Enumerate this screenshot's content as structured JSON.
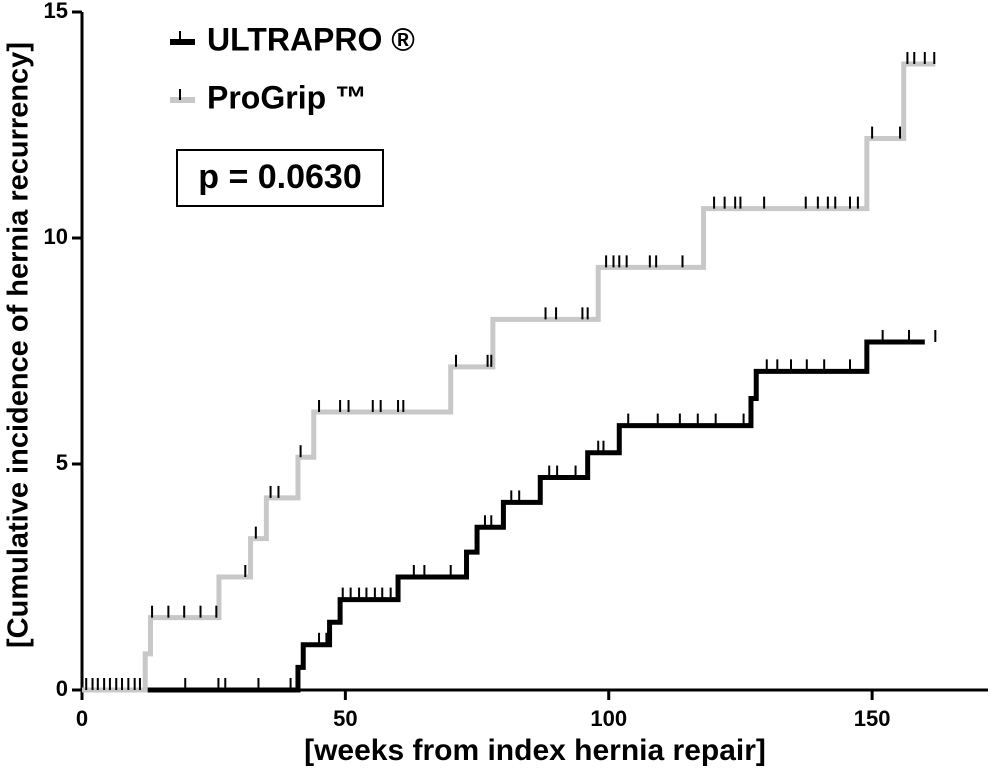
{
  "chart_data": {
    "type": "step",
    "xlabel": "[weeks from index hernia repair]",
    "ylabel": "[Cumulative incidence of hernia recurrency]",
    "annotation": "p = 0.0630",
    "xlim": [
      0,
      172
    ],
    "ylim": [
      0,
      15
    ],
    "xticks": [
      0,
      50,
      100,
      150
    ],
    "yticks": [
      0,
      5,
      10,
      15
    ],
    "series": [
      {
        "name": "ULTRAPRO ®",
        "color": "#000000",
        "x": [
          0,
          41,
          42,
          47,
          49,
          60,
          73,
          75,
          80,
          87,
          96,
          102,
          127,
          128,
          149,
          160
        ],
        "values": [
          0,
          0.5,
          1.0,
          1.5,
          2.0,
          2.5,
          3.05,
          3.6,
          4.15,
          4.7,
          5.25,
          5.85,
          6.45,
          7.05,
          7.7,
          7.7
        ],
        "censored": [
          19.6,
          25.9,
          27.2,
          33.5,
          39.6,
          45,
          46.4,
          49.5,
          51,
          52.6,
          54,
          55.6,
          57,
          58.6,
          63,
          65,
          70,
          76.5,
          77.7,
          81.5,
          83,
          88.7,
          90.2,
          93.7,
          98,
          99,
          103.7,
          109.3,
          113.5,
          116.9,
          120.3,
          125.6,
          130,
          132,
          134.6,
          137.6,
          140.9,
          145.8,
          152,
          157,
          162
        ]
      },
      {
        "name": "ProGrip ™",
        "color": "#c8c8c8",
        "x": [
          0,
          12,
          13,
          26,
          32,
          35,
          41,
          44,
          70,
          78,
          98,
          118,
          149,
          156,
          162
        ],
        "values": [
          0,
          0.8,
          1.6,
          2.5,
          3.35,
          4.25,
          5.15,
          6.15,
          7.15,
          8.2,
          9.35,
          10.65,
          12.2,
          13.85,
          13.85
        ],
        "censored": [
          0.8,
          2,
          3,
          4.2,
          5.3,
          6.5,
          7.6,
          8.8,
          10,
          11,
          13.3,
          16.4,
          19.4,
          22.5,
          25.5,
          31,
          33,
          35.8,
          37.3,
          41.5,
          45,
          49,
          50.6,
          55.2,
          56.7,
          60,
          61,
          71,
          77,
          77.7,
          88,
          90,
          95,
          96,
          99.5,
          100.9,
          102,
          103.4,
          107.8,
          109,
          114,
          120,
          122,
          124,
          125,
          129.5,
          137.4,
          139.7,
          141.6,
          143,
          145.8,
          147.3,
          150,
          155.3,
          156.7,
          158,
          160,
          161.8
        ]
      }
    ]
  }
}
